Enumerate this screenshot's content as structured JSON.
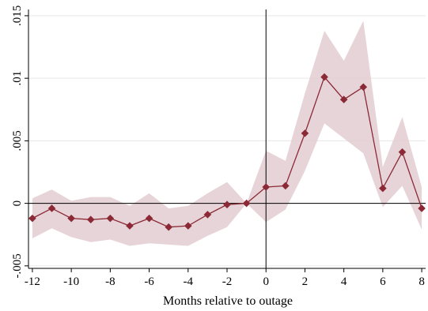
{
  "chart_data": {
    "type": "line",
    "title": "",
    "xlabel": "Months relative to outage",
    "ylabel": "",
    "xlim": [
      -12.2,
      8.2
    ],
    "ylim": [
      -0.0052,
      0.0155
    ],
    "x_ticks": [
      -12,
      -10,
      -8,
      -6,
      -4,
      -2,
      0,
      2,
      4,
      6,
      8
    ],
    "x_tick_labels": [
      "-12",
      "-10",
      "-8",
      "-6",
      "-4",
      "-2",
      "0",
      "2",
      "4",
      "6",
      "8"
    ],
    "y_ticks": [
      -0.005,
      0,
      0.005,
      0.01,
      0.015
    ],
    "y_tick_labels": [
      "-.005",
      "0",
      ".005",
      ".01",
      ".015"
    ],
    "grid": true,
    "reference_lines": {
      "x": 0,
      "y": 0
    },
    "series": [
      {
        "x": [
          -12,
          -11,
          -10,
          -9,
          -8,
          -7,
          -6,
          -5,
          -4,
          -3,
          -2,
          -1,
          0,
          1,
          2,
          3,
          4,
          5,
          6,
          7,
          8
        ],
        "values": [
          -0.0012,
          -0.0004,
          -0.0012,
          -0.0013,
          -0.0012,
          -0.0018,
          -0.0012,
          -0.0019,
          -0.0018,
          -0.0009,
          -0.0001,
          0.0,
          0.0013,
          0.0014,
          0.0056,
          0.0101,
          0.0083,
          0.0093,
          0.0012,
          0.0041,
          -0.0004
        ],
        "ci_lower": [
          -0.0028,
          -0.002,
          -0.0027,
          -0.0031,
          -0.0029,
          -0.0034,
          -0.0032,
          -0.0033,
          -0.0034,
          -0.0026,
          -0.0019,
          0.0,
          -0.0015,
          -0.0005,
          0.0026,
          0.0064,
          0.0052,
          0.004,
          -0.0003,
          0.0014,
          -0.0021
        ],
        "ci_upper": [
          0.0004,
          0.0011,
          0.0002,
          0.0005,
          0.0005,
          -0.0002,
          0.0008,
          -0.0004,
          -0.0002,
          0.0008,
          0.0017,
          0.0,
          0.0042,
          0.0034,
          0.0088,
          0.0138,
          0.0114,
          0.0146,
          0.0029,
          0.0069,
          0.0013
        ]
      }
    ],
    "colors": {
      "line": "#8b2a36",
      "marker": "#8b2a36",
      "ci_band": "#e3cdd1",
      "reference": "#000000",
      "grid": "#e6e6e6"
    }
  }
}
